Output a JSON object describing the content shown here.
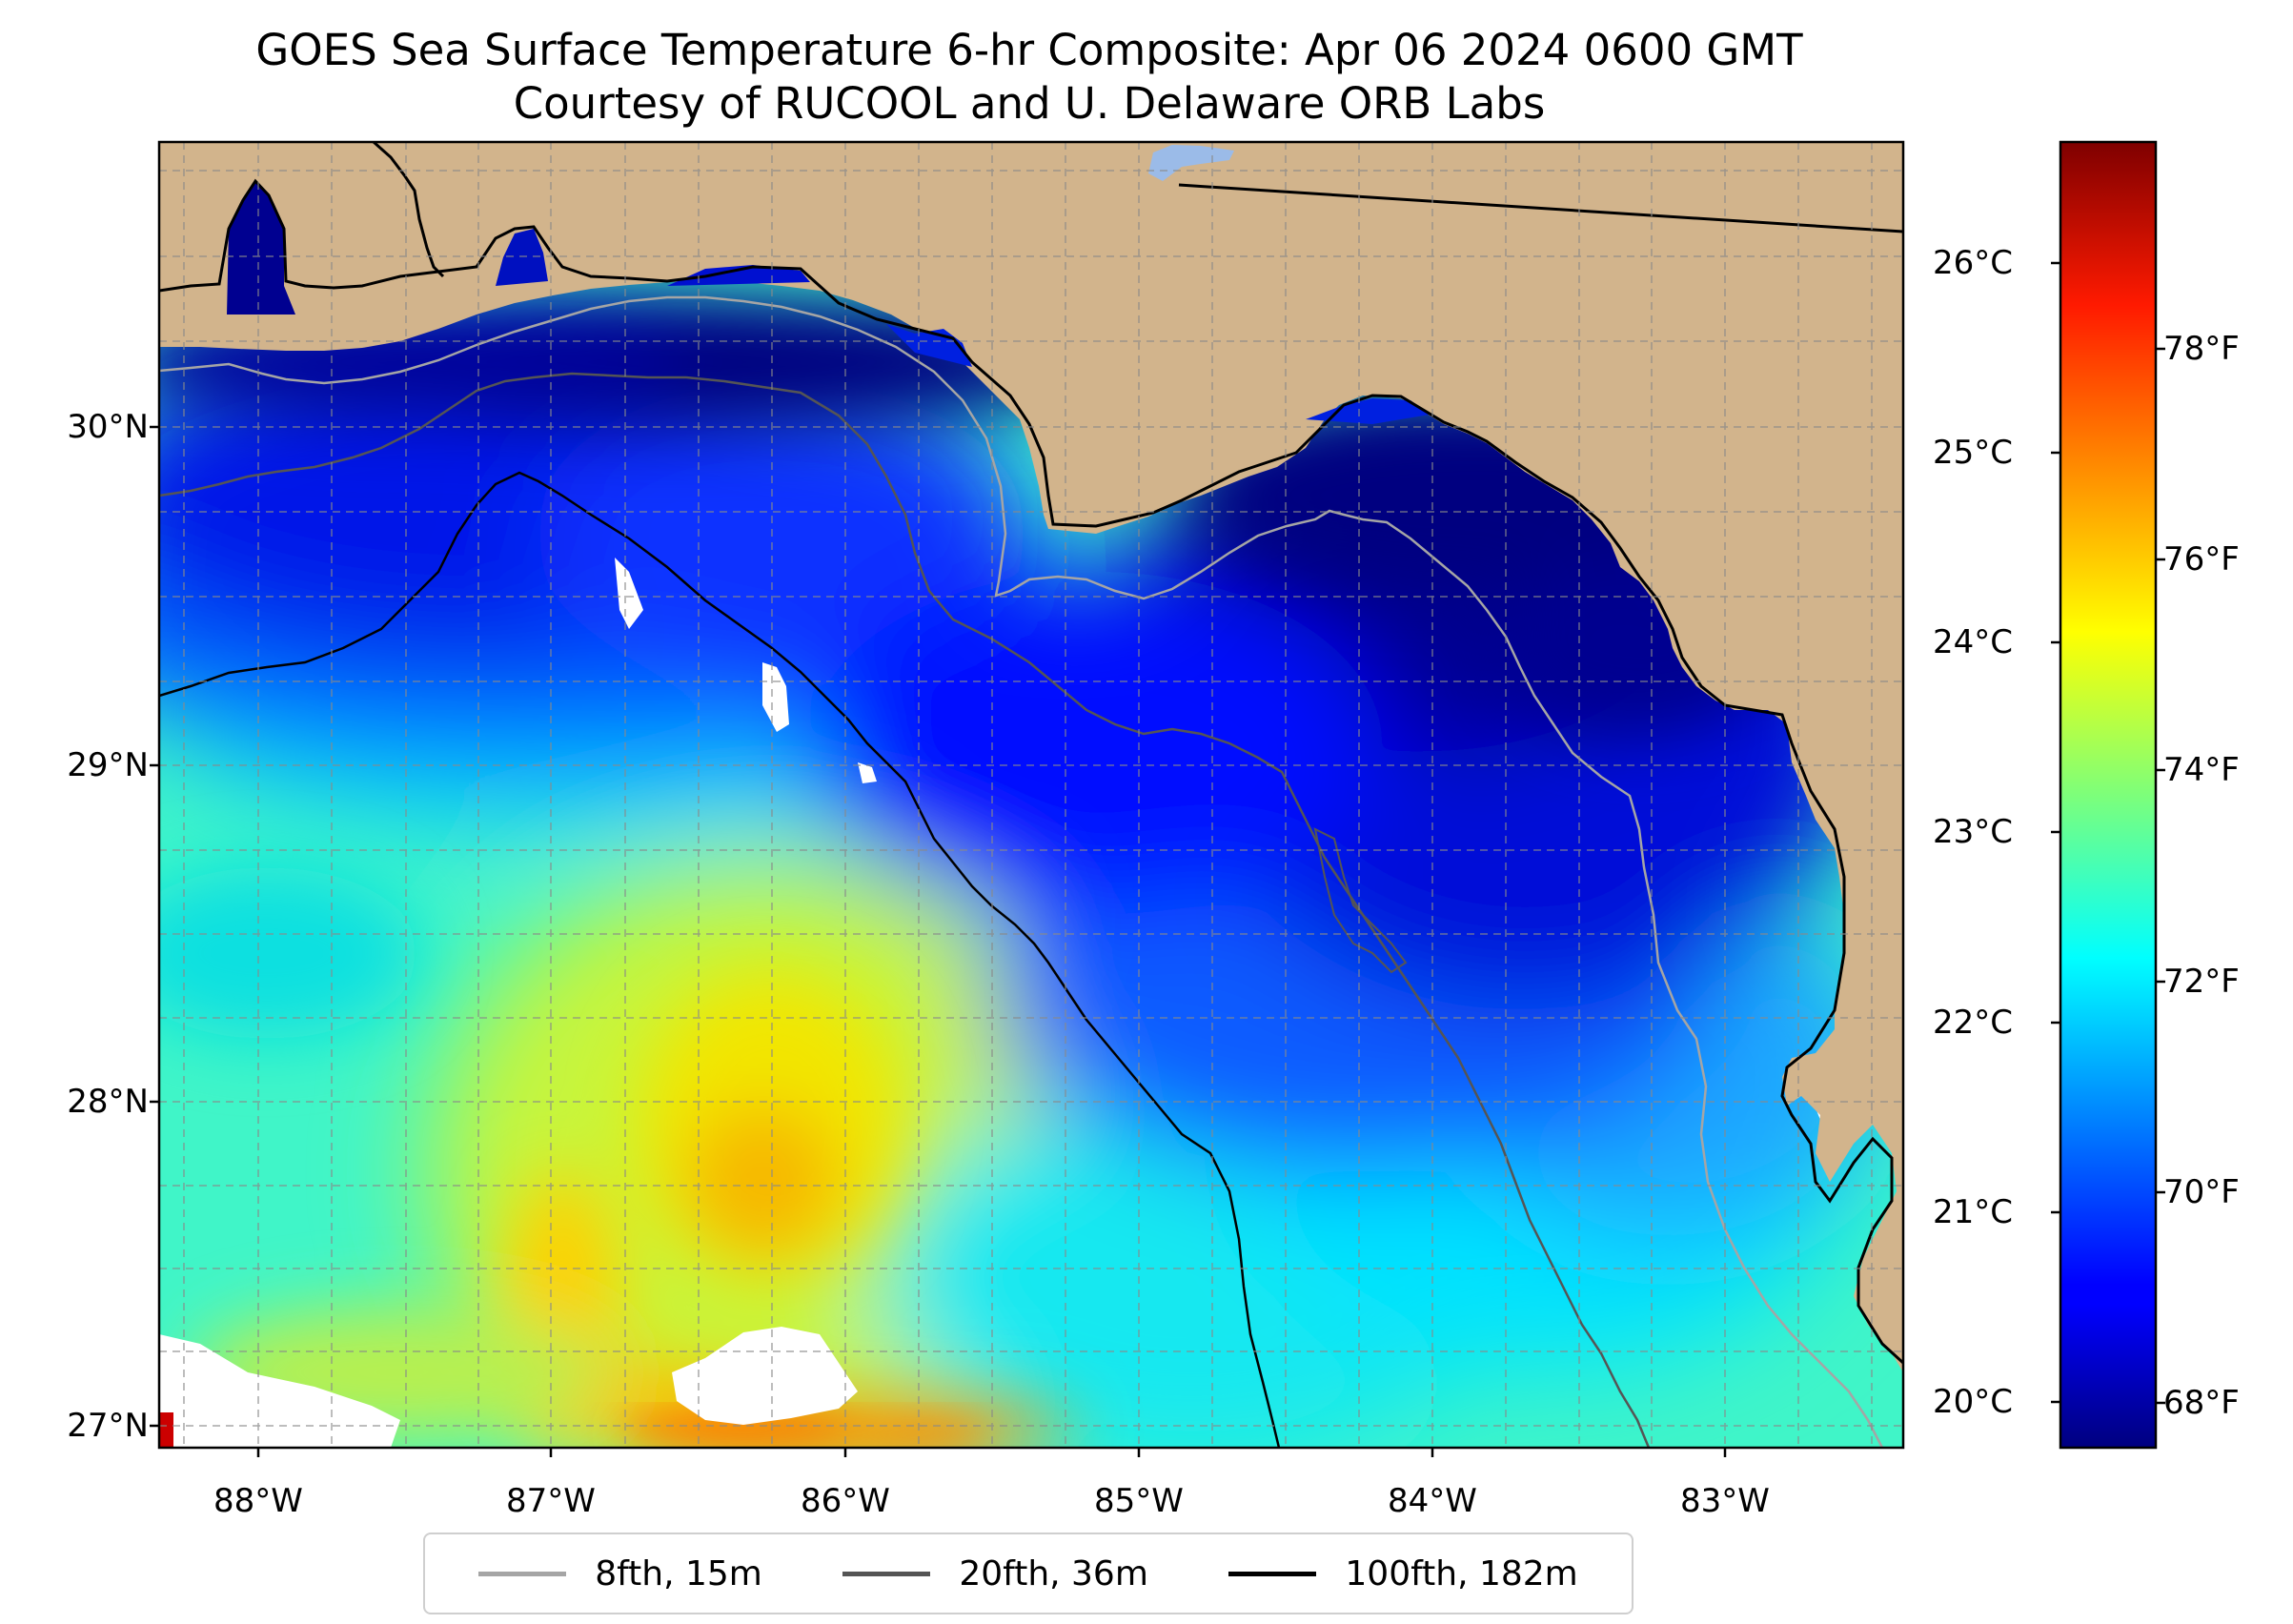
{
  "title": {
    "line1": "GOES Sea Surface Temperature 6-hr Composite: Apr 06 2024 0600 GMT",
    "line2": "Courtesy of RUCOOL and U. Delaware ORB Labs"
  },
  "map": {
    "extent": {
      "lon_min": -88.33,
      "lon_max": -82.38,
      "lat_min": 26.93,
      "lat_max": 30.84
    },
    "lat_ticks": [
      "30°N",
      "29°N",
      "28°N",
      "27°N"
    ],
    "lon_ticks": [
      "88°W",
      "87°W",
      "86°W",
      "85°W",
      "84°W",
      "83°W"
    ],
    "land_color": "#d2b48c",
    "missing_data_color": "#ffffff",
    "lake_color": "#9bbbe8"
  },
  "colorbar": {
    "celsius_ticks": [
      "26°C",
      "25°C",
      "24°C",
      "23°C",
      "22°C",
      "21°C",
      "20°C"
    ],
    "fahrenheit_ticks": [
      "78°F",
      "76°F",
      "74°F",
      "72°F",
      "70°F",
      "68°F"
    ],
    "colormap": "jet",
    "range_celsius": [
      19.8,
      26.7
    ]
  },
  "legend": [
    {
      "label": "8fth, 15m",
      "color": "#a5a5a5"
    },
    {
      "label": "20fth, 36m",
      "color": "#555555"
    },
    {
      "label": "100fth, 182m",
      "color": "#000000"
    }
  ]
}
